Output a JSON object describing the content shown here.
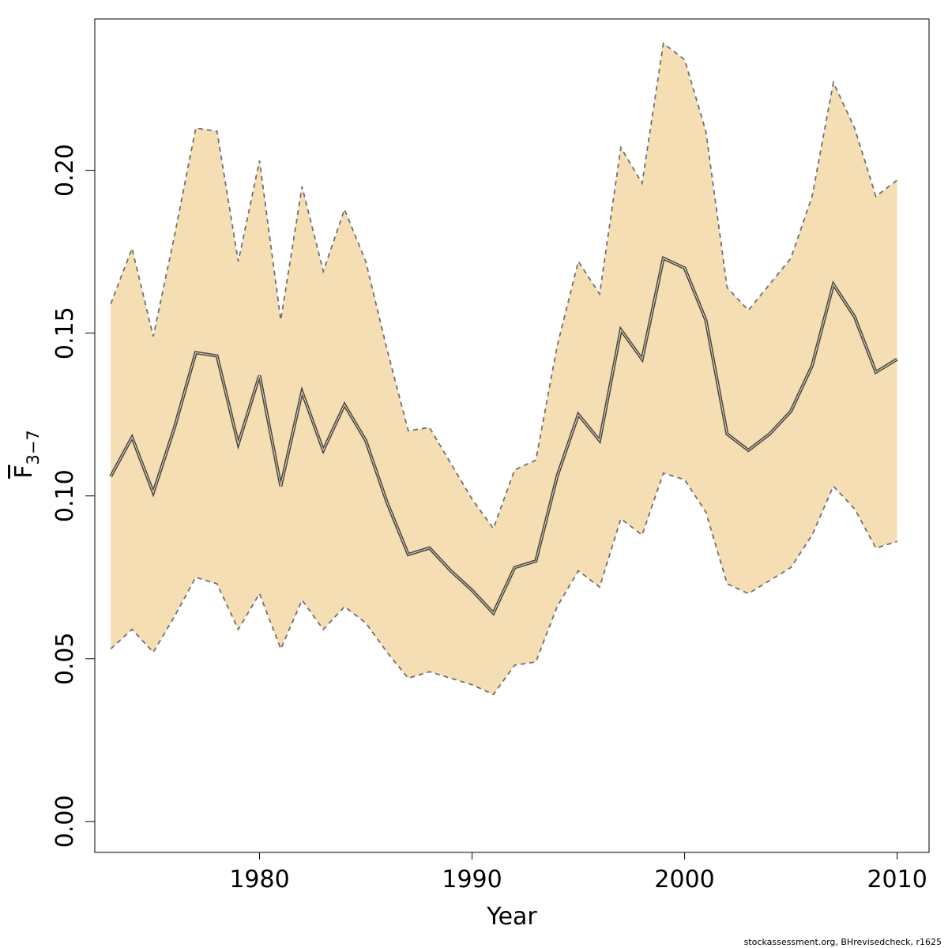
{
  "chart_data": {
    "type": "area",
    "xlabel": "Year",
    "ylabel": {
      "main": "F",
      "subscript": "3−7"
    },
    "xlim": [
      1972.25,
      2011.5
    ],
    "ylim": [
      -0.0095,
      0.2465
    ],
    "x_ticks": [
      1980,
      1990,
      2000,
      2010
    ],
    "y_ticks": [
      0.0,
      0.05,
      0.1,
      0.15,
      0.2
    ],
    "y_tick_labels": [
      "0.00",
      "0.05",
      "0.10",
      "0.15",
      "0.20"
    ],
    "band_color": "#f5deb3",
    "line_color": "#444444",
    "x": [
      1973,
      1974,
      1975,
      1976,
      1977,
      1978,
      1979,
      1980,
      1981,
      1982,
      1983,
      1984,
      1985,
      1986,
      1987,
      1988,
      1989,
      1990,
      1991,
      1992,
      1993,
      1994,
      1995,
      1996,
      1997,
      1998,
      1999,
      2000,
      2001,
      2002,
      2003,
      2004,
      2005,
      2006,
      2007,
      2008,
      2009,
      2010
    ],
    "series": [
      {
        "role": "estimate",
        "values": [
          0.106,
          0.118,
          0.101,
          0.121,
          0.144,
          0.143,
          0.116,
          0.137,
          0.103,
          0.132,
          0.114,
          0.128,
          0.117,
          0.098,
          0.082,
          0.084,
          0.077,
          0.071,
          0.064,
          0.078,
          0.08,
          0.106,
          0.125,
          0.117,
          0.151,
          0.142,
          0.173,
          0.17,
          0.154,
          0.119,
          0.114,
          0.119,
          0.126,
          0.14,
          0.165,
          0.155,
          0.138,
          0.142
        ]
      },
      {
        "role": "upper",
        "values": [
          0.159,
          0.176,
          0.149,
          0.18,
          0.213,
          0.212,
          0.172,
          0.203,
          0.154,
          0.195,
          0.169,
          0.188,
          0.172,
          0.145,
          0.12,
          0.121,
          0.11,
          0.099,
          0.09,
          0.108,
          0.111,
          0.146,
          0.172,
          0.162,
          0.207,
          0.196,
          0.239,
          0.234,
          0.212,
          0.164,
          0.157,
          0.165,
          0.173,
          0.192,
          0.227,
          0.213,
          0.192,
          0.197
        ]
      },
      {
        "role": "lower",
        "values": [
          0.053,
          0.059,
          0.052,
          0.063,
          0.075,
          0.073,
          0.059,
          0.07,
          0.053,
          0.068,
          0.059,
          0.066,
          0.061,
          0.052,
          0.044,
          0.046,
          0.044,
          0.042,
          0.039,
          0.048,
          0.049,
          0.066,
          0.077,
          0.072,
          0.093,
          0.088,
          0.107,
          0.105,
          0.095,
          0.073,
          0.07,
          0.074,
          0.078,
          0.088,
          0.103,
          0.096,
          0.084,
          0.086
        ]
      }
    ]
  },
  "footer": {
    "credit": "stockassessment.org, BHrevisedcheck, r1625"
  }
}
